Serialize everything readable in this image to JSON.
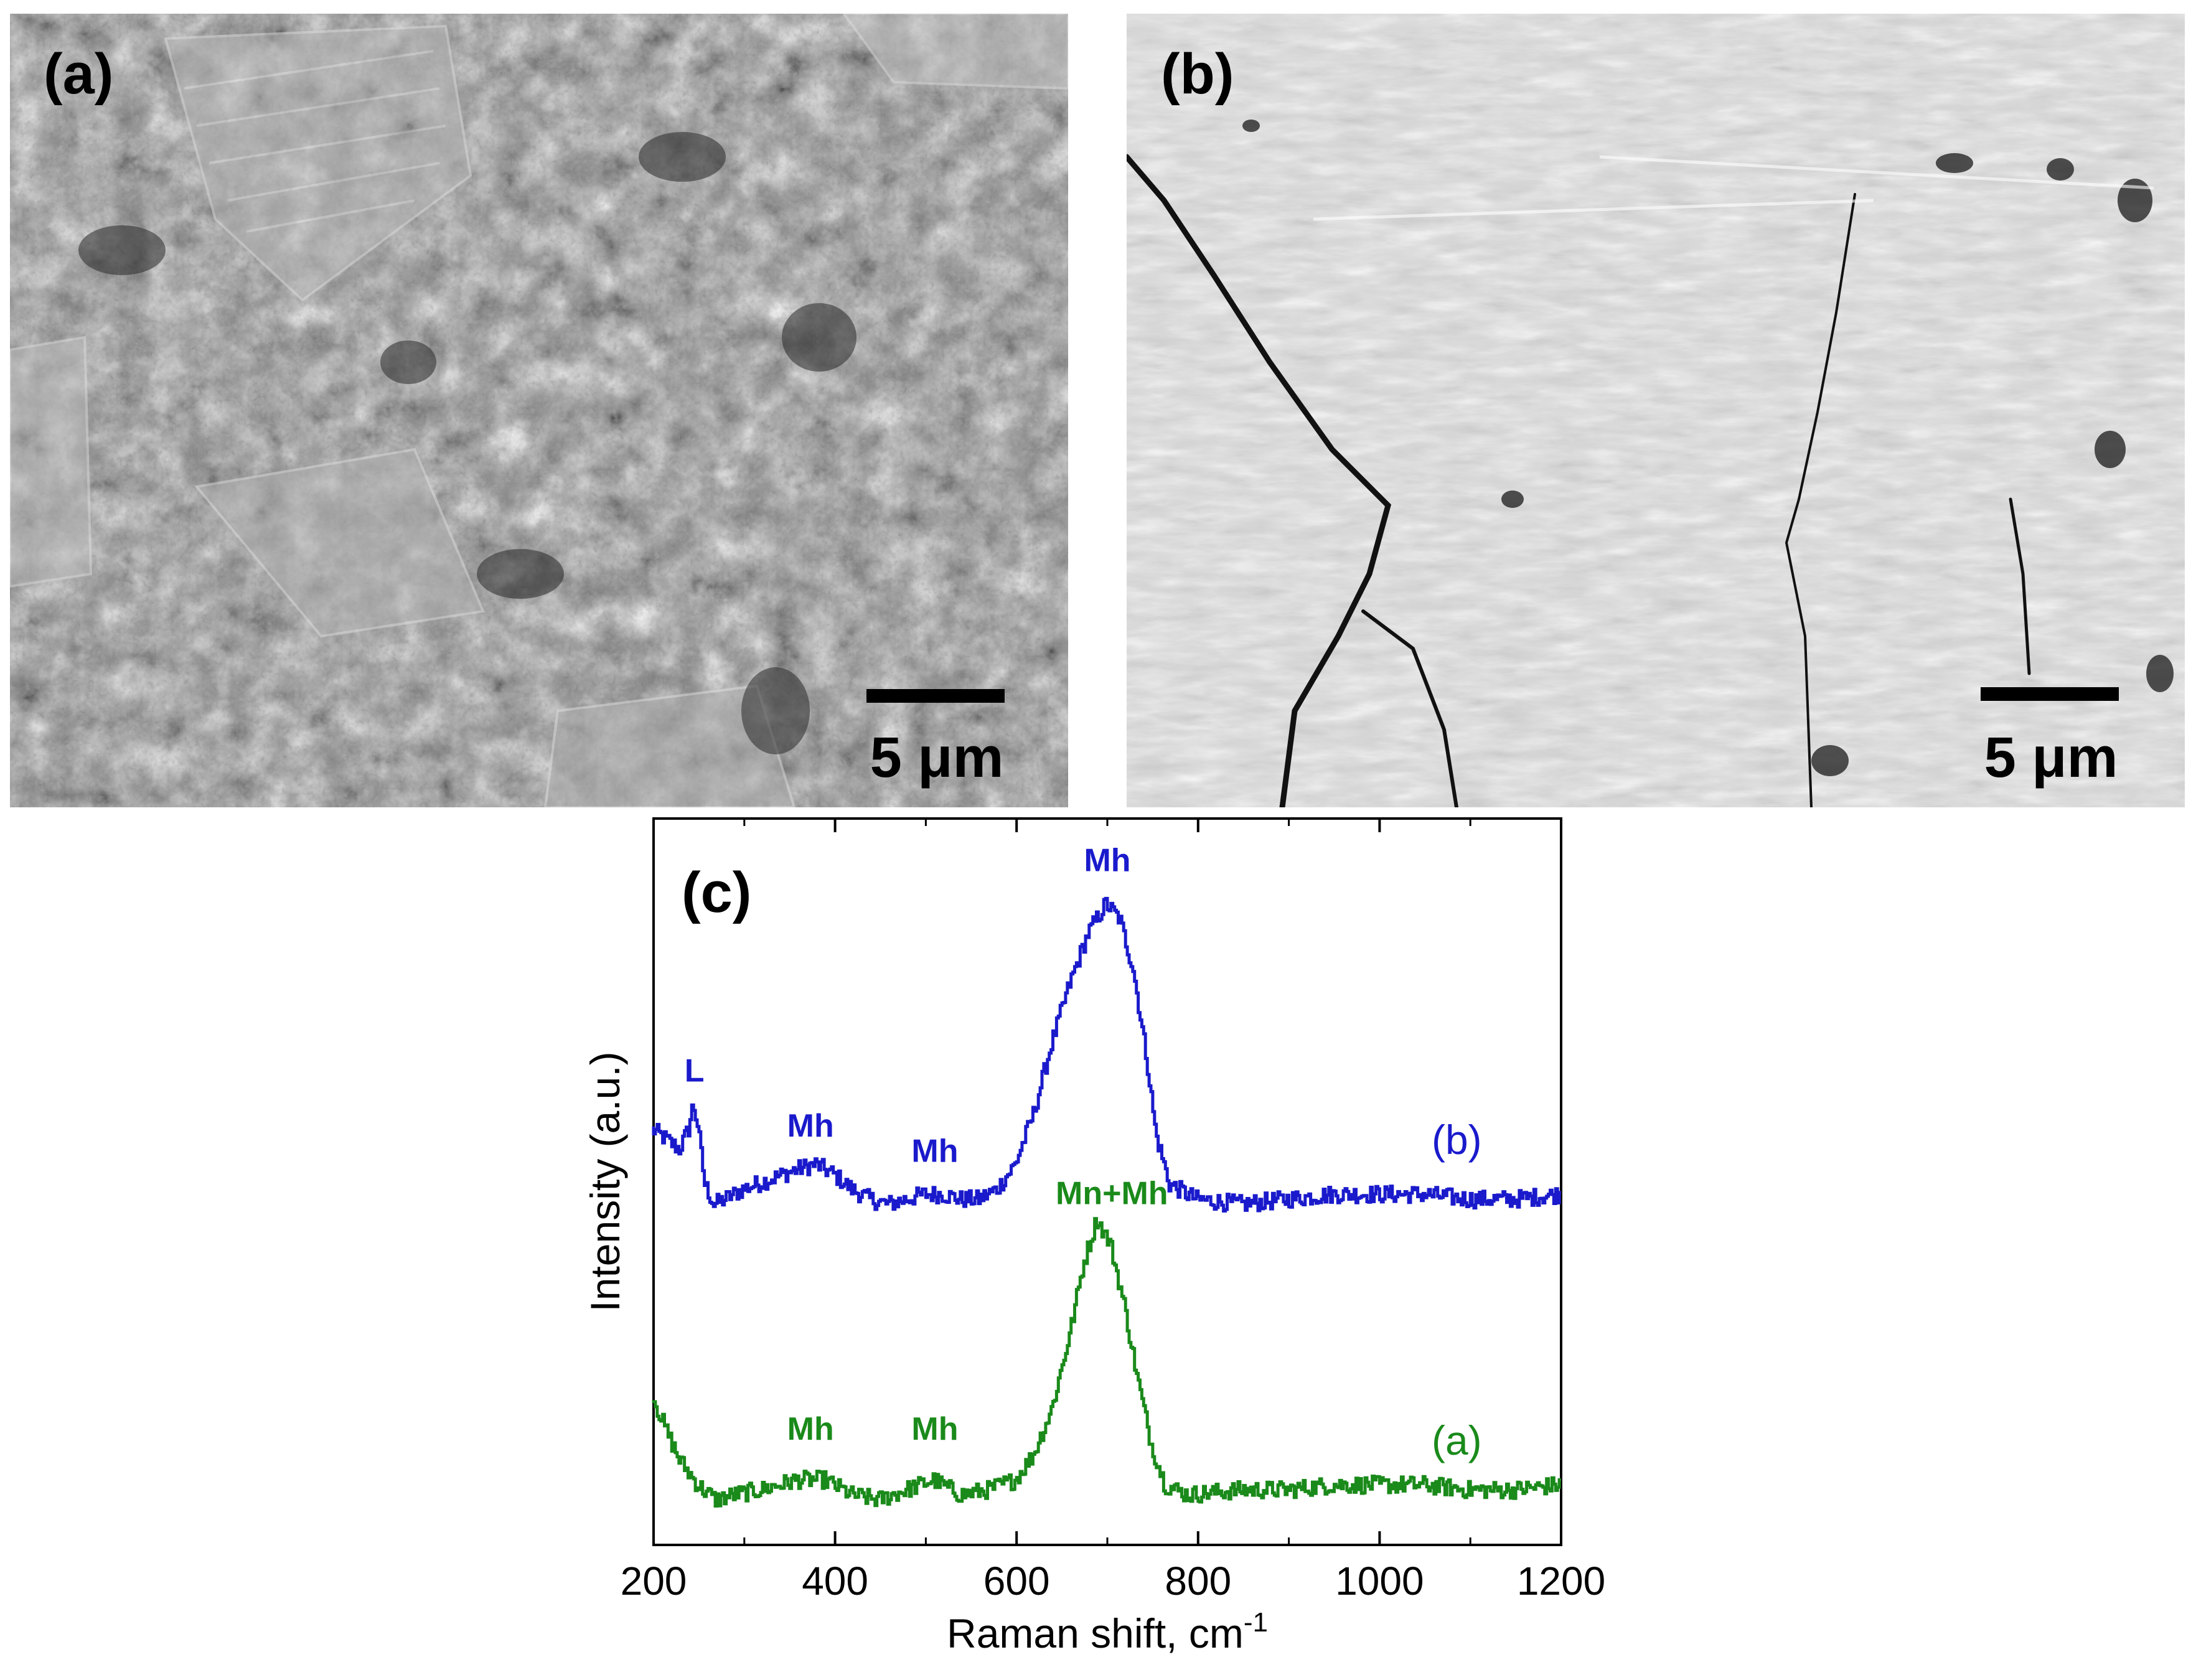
{
  "panels": {
    "a": {
      "label": "(a)",
      "scalebar": "5 μm"
    },
    "b": {
      "label": "(b)",
      "scalebar": "5 μm"
    },
    "c": {
      "label": "(c)"
    }
  },
  "chart_data": {
    "type": "line",
    "xlabel": "Raman shift, cm",
    "xlabel_sup": "-1",
    "ylabel": "Intensity (a.u.)",
    "xlim": [
      200,
      1200
    ],
    "xticks": [
      "200",
      "400",
      "600",
      "800",
      "1000",
      "1200"
    ],
    "y_ticks_shown": false,
    "series": [
      {
        "name": "(b)",
        "color": "#1a1acc",
        "label_x": 1085,
        "label_y": 0.78,
        "x": [
          200,
          215,
          230,
          240,
          245,
          250,
          258,
          268,
          280,
          300,
          330,
          360,
          380,
          400,
          420,
          440,
          460,
          480,
          500,
          520,
          540,
          560,
          580,
          600,
          620,
          640,
          660,
          680,
          700,
          715,
          730,
          745,
          755,
          770,
          800,
          850,
          900,
          950,
          1000,
          1050,
          1100,
          1150,
          1200
        ],
        "y": [
          0.83,
          0.81,
          0.79,
          0.83,
          0.88,
          0.84,
          0.72,
          0.68,
          0.69,
          0.71,
          0.73,
          0.75,
          0.76,
          0.74,
          0.71,
          0.69,
          0.68,
          0.69,
          0.7,
          0.7,
          0.69,
          0.69,
          0.71,
          0.76,
          0.86,
          1.0,
          1.12,
          1.22,
          1.28,
          1.25,
          1.15,
          0.97,
          0.82,
          0.72,
          0.69,
          0.68,
          0.69,
          0.7,
          0.7,
          0.7,
          0.69,
          0.69,
          0.7
        ]
      },
      {
        "name": "(a)",
        "color": "#1a8a1a",
        "label_x": 1085,
        "label_y": 0.18,
        "x": [
          200,
          215,
          230,
          250,
          270,
          290,
          320,
          360,
          390,
          420,
          450,
          480,
          510,
          540,
          570,
          600,
          620,
          640,
          660,
          675,
          690,
          705,
          720,
          735,
          750,
          765,
          790,
          850,
          900,
          950,
          1000,
          1050,
          1100,
          1150,
          1200
        ],
        "y": [
          0.3,
          0.23,
          0.17,
          0.12,
          0.09,
          0.1,
          0.11,
          0.13,
          0.13,
          0.1,
          0.09,
          0.11,
          0.13,
          0.1,
          0.11,
          0.13,
          0.18,
          0.27,
          0.42,
          0.56,
          0.65,
          0.6,
          0.48,
          0.33,
          0.2,
          0.12,
          0.1,
          0.11,
          0.11,
          0.12,
          0.12,
          0.12,
          0.11,
          0.11,
          0.12
        ]
      }
    ],
    "annotations": [
      {
        "text": "L",
        "x": 245,
        "y": 0.925,
        "color": "#1a1acc"
      },
      {
        "text": "Mh",
        "x": 373,
        "y": 0.815,
        "color": "#1a1acc"
      },
      {
        "text": "Mh",
        "x": 510,
        "y": 0.765,
        "color": "#1a1acc"
      },
      {
        "text": "Mh",
        "x": 700,
        "y": 1.345,
        "color": "#1a1acc"
      },
      {
        "text": "Mn+Mh",
        "x": 705,
        "y": 0.68,
        "color": "#1a8a1a"
      },
      {
        "text": "Mh",
        "x": 373,
        "y": 0.21,
        "color": "#1a8a1a"
      },
      {
        "text": "Mh",
        "x": 510,
        "y": 0.21,
        "color": "#1a8a1a"
      }
    ],
    "ylim": [
      0,
      1.45
    ]
  }
}
